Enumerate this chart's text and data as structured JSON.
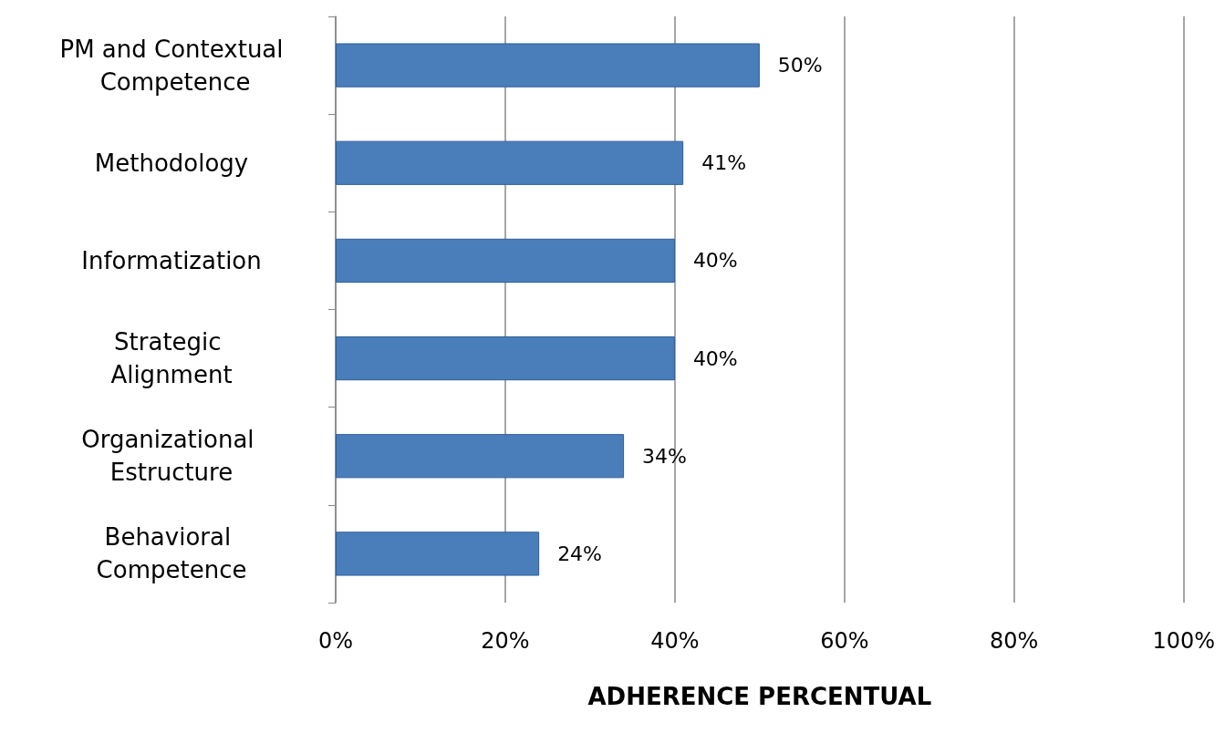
{
  "chart_data": {
    "type": "bar",
    "orientation": "horizontal",
    "xlabel": "ADHERENCE PERCENTUAL",
    "categories": [
      "PM and Contextual Competence",
      "Methodology",
      "Informatization",
      "Strategic Alignment",
      "Organizational Estructure",
      "Behavioral Competence"
    ],
    "values": [
      50,
      41,
      40,
      40,
      34,
      24
    ],
    "value_labels": [
      "50%",
      "41%",
      "40%",
      "40%",
      "34%",
      "24%"
    ],
    "color": "#4a7ebb",
    "xlim": [
      0,
      100
    ],
    "xticks": [
      {
        "value": 0,
        "label": "0%"
      },
      {
        "value": 20,
        "label": "20%"
      },
      {
        "value": 40,
        "label": "40%"
      },
      {
        "value": 60,
        "label": "60%"
      },
      {
        "value": 80,
        "label": "80%"
      },
      {
        "value": 100,
        "label": "100%"
      }
    ],
    "grid": "x"
  }
}
